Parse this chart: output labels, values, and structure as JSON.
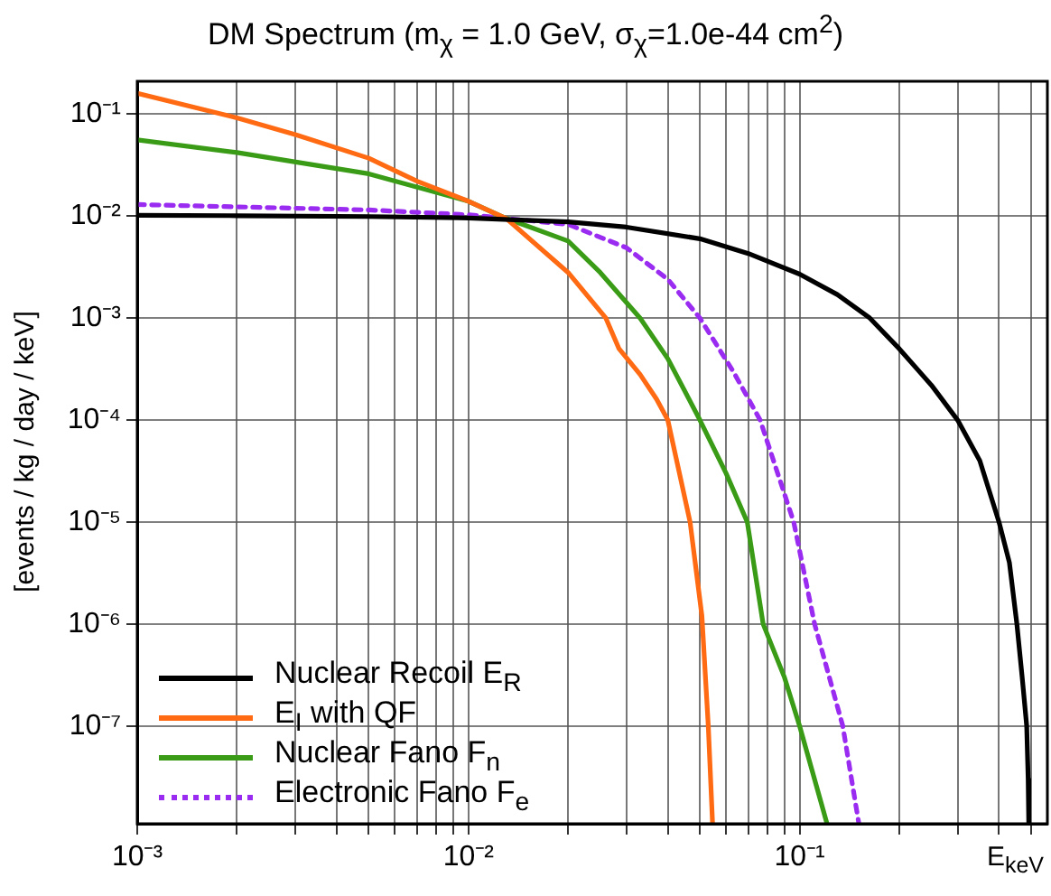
{
  "chart_data": {
    "type": "line",
    "title": "DM Spectrum (m$_{χ}$ = 1.0 GeV, σ$_{χ}$=1.0e-44 cm$^{2}$)",
    "xlabel": "E$_{keV}$",
    "ylabel": "[events / kg / day / keV]",
    "log": "xy",
    "xlim": [
      0.001,
      0.56
    ],
    "ylim": [
      1.1e-08,
      0.21
    ],
    "xticks": [
      {
        "value": 0.001,
        "label": "10⁻³"
      },
      {
        "value": 0.002,
        "label": null
      },
      {
        "value": 0.003,
        "label": null
      },
      {
        "value": 0.004,
        "label": null
      },
      {
        "value": 0.005,
        "label": null
      },
      {
        "value": 0.006,
        "label": null
      },
      {
        "value": 0.007,
        "label": null
      },
      {
        "value": 0.008,
        "label": null
      },
      {
        "value": 0.009,
        "label": null
      },
      {
        "value": 0.01,
        "label": "10⁻²"
      },
      {
        "value": 0.02,
        "label": null
      },
      {
        "value": 0.03,
        "label": null
      },
      {
        "value": 0.04,
        "label": null
      },
      {
        "value": 0.05,
        "label": null
      },
      {
        "value": 0.06,
        "label": null
      },
      {
        "value": 0.07,
        "label": null
      },
      {
        "value": 0.08,
        "label": null
      },
      {
        "value": 0.09,
        "label": null
      },
      {
        "value": 0.1,
        "label": "10⁻¹"
      },
      {
        "value": 0.2,
        "label": null
      },
      {
        "value": 0.3,
        "label": null
      },
      {
        "value": 0.4,
        "label": null
      },
      {
        "value": 0.5,
        "label": null
      }
    ],
    "yticks": [
      {
        "value": 1e-07,
        "label": "10⁻⁷"
      },
      {
        "value": 1e-06,
        "label": "10⁻⁶"
      },
      {
        "value": 1e-05,
        "label": "10⁻⁵"
      },
      {
        "value": 0.0001,
        "label": "10⁻⁴"
      },
      {
        "value": 0.001,
        "label": "10⁻³"
      },
      {
        "value": 0.01,
        "label": "10⁻²"
      },
      {
        "value": 0.1,
        "label": "10⁻¹"
      }
    ],
    "grid": true,
    "legend": "bottom left",
    "marker": "none",
    "series": [
      {
        "name": "Nuclear Recoil E$_{R}$",
        "color": "#000000",
        "line_style": "solid",
        "x": [
          0.001,
          0.002,
          0.005,
          0.01,
          0.02,
          0.03,
          0.05,
          0.07,
          0.1,
          0.13,
          0.163,
          0.2,
          0.25,
          0.3,
          0.35,
          0.4,
          0.43,
          0.453,
          0.47,
          0.485,
          0.49,
          0.492
        ],
        "values": [
          0.0102,
          0.0101,
          0.0099,
          0.0096,
          0.0088,
          0.0078,
          0.006,
          0.0043,
          0.0027,
          0.0017,
          0.001,
          0.0005,
          0.00022,
          0.0001,
          4e-05,
          1e-05,
          4e-06,
          1e-06,
          3e-07,
          1e-07,
          3e-08,
          1.1e-08
        ]
      },
      {
        "name": "E$_{I}$ with QF",
        "color": "#ff6a13",
        "line_style": "solid",
        "x": [
          0.001,
          0.002,
          0.003,
          0.005,
          0.007,
          0.01,
          0.013,
          0.02,
          0.026,
          0.0285,
          0.033,
          0.037,
          0.04,
          0.0467,
          0.0507,
          0.053,
          0.0546
        ],
        "values": [
          0.16,
          0.092,
          0.063,
          0.037,
          0.022,
          0.014,
          0.0095,
          0.0028,
          0.001,
          0.0005,
          0.00028,
          0.00016,
          0.0001,
          1e-05,
          1.2e-06,
          1e-07,
          1.1e-08
        ]
      },
      {
        "name": "Nuclear Fano F$_{n}$",
        "color": "#3a9c16",
        "line_style": "solid",
        "x": [
          0.001,
          0.002,
          0.005,
          0.01,
          0.013,
          0.02,
          0.025,
          0.033,
          0.04,
          0.05,
          0.06,
          0.0695,
          0.0776,
          0.09,
          0.1,
          0.121
        ],
        "values": [
          0.056,
          0.042,
          0.026,
          0.014,
          0.0095,
          0.0057,
          0.0028,
          0.001,
          0.0004,
          0.0001,
          3e-05,
          1e-05,
          1e-06,
          3e-07,
          1e-07,
          1.1e-08
        ]
      },
      {
        "name": "Electronic Fano F$_{e}$",
        "color": "#9a2bf0",
        "line_style": "dotted",
        "x": [
          0.001,
          0.005,
          0.01,
          0.013,
          0.02,
          0.03,
          0.04,
          0.05,
          0.063,
          0.076,
          0.096,
          0.111,
          0.135,
          0.151
        ],
        "values": [
          0.013,
          0.0115,
          0.0103,
          0.0095,
          0.0083,
          0.0049,
          0.0024,
          0.001,
          0.0003,
          0.0001,
          1e-05,
          1e-06,
          1e-07,
          1.1e-08
        ]
      }
    ]
  }
}
